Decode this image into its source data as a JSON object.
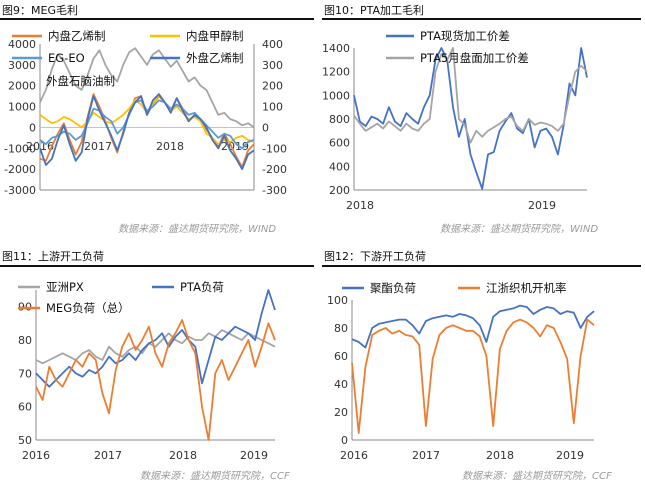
{
  "figures": [
    {
      "title": "图9：MEG毛利",
      "source": "数据来源：盛达期货研究院，WIND"
    },
    {
      "title": "图10：PTA加工毛利",
      "source": "数据来源：盛达期货研究院，WIND"
    },
    {
      "title": "图11：上游开工负荷",
      "source": "数据来源：盛达期货研究院，CCF"
    },
    {
      "title": "图12：下游开工负荷",
      "source": "数据来源：盛达期货研究院，CCF"
    }
  ],
  "chart_data": [
    {
      "type": "line",
      "title": "图9：MEG毛利",
      "x_ticks": [
        "2016",
        "2017",
        "2018",
        "2019"
      ],
      "y_left_ticks": [
        -3000,
        -2000,
        -1000,
        0,
        1000,
        2000,
        3000,
        4000
      ],
      "y_right_ticks": [
        -300,
        -200,
        -100,
        0,
        100,
        200,
        300,
        400
      ],
      "ylim": [
        -3000,
        4000
      ],
      "y2lim": [
        -300,
        400
      ],
      "legend": [
        "内盘乙烯制",
        "内盘甲醇制",
        "EG-EO",
        "外盘乙烯制",
        "外盘石脑油制"
      ],
      "series": [
        {
          "name": "内盘乙烯制",
          "axis": "left",
          "color": "#ED7D31",
          "values": [
            -1500,
            -1600,
            -900,
            -300,
            200,
            -600,
            -1300,
            -700,
            500,
            1600,
            1000,
            300,
            -500,
            -1200,
            -200,
            700,
            1400,
            1500,
            600,
            1100,
            1500,
            1200,
            800,
            1400,
            900,
            300,
            600,
            400,
            -100,
            -500,
            -900,
            -300,
            -800,
            -1400,
            -1900,
            -1100,
            -800
          ]
        },
        {
          "name": "内盘甲醇制",
          "axis": "left",
          "color": "#FFC000",
          "values": [
            600,
            400,
            200,
            300,
            500,
            400,
            200,
            0,
            300,
            700,
            500,
            300,
            200,
            400,
            600,
            900,
            1300,
            1100,
            700,
            1100,
            1600,
            1200,
            800,
            1000,
            700,
            400,
            500,
            300,
            -300,
            -500,
            -800,
            -600,
            -700,
            -500,
            -400,
            -600,
            -700
          ]
        },
        {
          "name": "EG-EO",
          "axis": "left",
          "color": "#5B9BD5",
          "values": [
            -600,
            -800,
            -500,
            -400,
            -200,
            -300,
            -600,
            -400,
            200,
            900,
            800,
            500,
            300,
            -300,
            0,
            600,
            1200,
            1300,
            800,
            1000,
            1300,
            1200,
            900,
            1100,
            900,
            600,
            700,
            400,
            100,
            -200,
            -500,
            -300,
            -400,
            -800,
            -1000,
            -700,
            -600
          ]
        },
        {
          "name": "外盘乙烯制",
          "axis": "right",
          "color": "#4472C4",
          "values": [
            -100,
            -180,
            -150,
            -60,
            10,
            -80,
            -160,
            -120,
            40,
            150,
            80,
            20,
            -40,
            -110,
            -30,
            70,
            120,
            150,
            60,
            130,
            160,
            120,
            70,
            140,
            80,
            30,
            60,
            40,
            0,
            -60,
            -100,
            -40,
            -110,
            -150,
            -200,
            -130,
            -110
          ]
        },
        {
          "name": "外盘石脑油制",
          "axis": "right",
          "color": "#A5A5A5",
          "values": [
            120,
            180,
            280,
            350,
            320,
            260,
            200,
            180,
            250,
            330,
            370,
            300,
            250,
            220,
            300,
            360,
            380,
            340,
            300,
            350,
            370,
            330,
            290,
            320,
            270,
            220,
            240,
            200,
            180,
            120,
            60,
            70,
            40,
            30,
            10,
            20,
            0
          ]
        }
      ]
    },
    {
      "type": "line",
      "title": "图10：PTA加工毛利",
      "x_ticks": [
        "2018",
        "2019"
      ],
      "y_ticks": [
        200,
        400,
        600,
        800,
        1000,
        1200,
        1400
      ],
      "ylim": [
        200,
        1400
      ],
      "legend": [
        "PTA现货加工价差",
        "PTA5月盘面加工价差"
      ],
      "series": [
        {
          "name": "PTA现货加工价差",
          "color": "#4472C4",
          "values": [
            1000,
            780,
            740,
            820,
            800,
            760,
            900,
            780,
            740,
            850,
            800,
            760,
            900,
            1000,
            1300,
            1400,
            1300,
            900,
            650,
            800,
            500,
            350,
            210,
            500,
            520,
            700,
            780,
            850,
            720,
            680,
            800,
            560,
            700,
            720,
            650,
            500,
            750,
            1100,
            1000,
            1400,
            1150
          ]
        },
        {
          "name": "PTA5月盘面加工价差",
          "color": "#A5A5A5",
          "values": [
            830,
            760,
            700,
            730,
            760,
            720,
            780,
            740,
            700,
            760,
            720,
            700,
            760,
            800,
            1200,
            1350,
            1300,
            1400,
            800,
            750,
            600,
            700,
            650,
            700,
            730,
            760,
            800,
            820,
            740,
            700,
            800,
            750,
            770,
            760,
            740,
            700,
            760,
            1000,
            1200,
            1250,
            1200
          ]
        }
      ]
    },
    {
      "type": "line",
      "title": "图11：上游开工负荷",
      "x_ticks": [
        "2016",
        "2017",
        "2018",
        "2019"
      ],
      "y_ticks": [
        50,
        60,
        70,
        80,
        90
      ],
      "ylim": [
        50,
        95
      ],
      "legend": [
        "亚洲PX",
        "PTA负荷",
        "MEG负荷（总）"
      ],
      "series": [
        {
          "name": "亚洲PX",
          "color": "#A5A5A5",
          "values": [
            74,
            73,
            74,
            75,
            76,
            75,
            74,
            76,
            77,
            75,
            74,
            78,
            76,
            75,
            77,
            78,
            76,
            79,
            78,
            80,
            82,
            80,
            79,
            81,
            80,
            80,
            82,
            81,
            83,
            82,
            81,
            80,
            82,
            81,
            80,
            79,
            78
          ]
        },
        {
          "name": "PTA负荷",
          "color": "#4472C4",
          "values": [
            70,
            68,
            66,
            68,
            70,
            72,
            70,
            69,
            71,
            70,
            72,
            75,
            73,
            74,
            76,
            74,
            77,
            79,
            80,
            82,
            78,
            81,
            83,
            80,
            78,
            67,
            74,
            81,
            80,
            82,
            84,
            83,
            82,
            80,
            88,
            95,
            89
          ]
        },
        {
          "name": "MEG负荷（总）",
          "color": "#ED7D31",
          "values": [
            66,
            62,
            72,
            68,
            66,
            70,
            74,
            72,
            76,
            74,
            64,
            58,
            71,
            78,
            82,
            77,
            80,
            84,
            76,
            72,
            79,
            82,
            86,
            80,
            76,
            60,
            50,
            70,
            74,
            68,
            72,
            76,
            80,
            72,
            78,
            85,
            80
          ]
        }
      ]
    },
    {
      "type": "line",
      "title": "图12：下游开工负荷",
      "x_ticks": [
        "2016",
        "2017",
        "2018",
        "2019"
      ],
      "y_ticks": [
        0,
        20,
        40,
        60,
        80,
        100
      ],
      "ylim": [
        0,
        100
      ],
      "legend": [
        "聚酯负荷",
        "江浙织机开机率"
      ],
      "series": [
        {
          "name": "聚酯负荷",
          "color": "#4472C4",
          "values": [
            72,
            70,
            66,
            80,
            83,
            84,
            85,
            86,
            86,
            82,
            76,
            85,
            87,
            88,
            89,
            88,
            90,
            89,
            87,
            82,
            70,
            88,
            92,
            93,
            94,
            96,
            95,
            90,
            93,
            95,
            94,
            90,
            92,
            91,
            80,
            88,
            92
          ]
        },
        {
          "name": "江浙织机开机率",
          "color": "#ED7D31",
          "values": [
            55,
            5,
            52,
            75,
            78,
            80,
            76,
            78,
            75,
            74,
            68,
            10,
            58,
            75,
            80,
            82,
            80,
            78,
            78,
            74,
            60,
            10,
            65,
            78,
            84,
            86,
            84,
            80,
            74,
            82,
            80,
            70,
            58,
            12,
            60,
            86,
            82
          ]
        }
      ]
    }
  ]
}
